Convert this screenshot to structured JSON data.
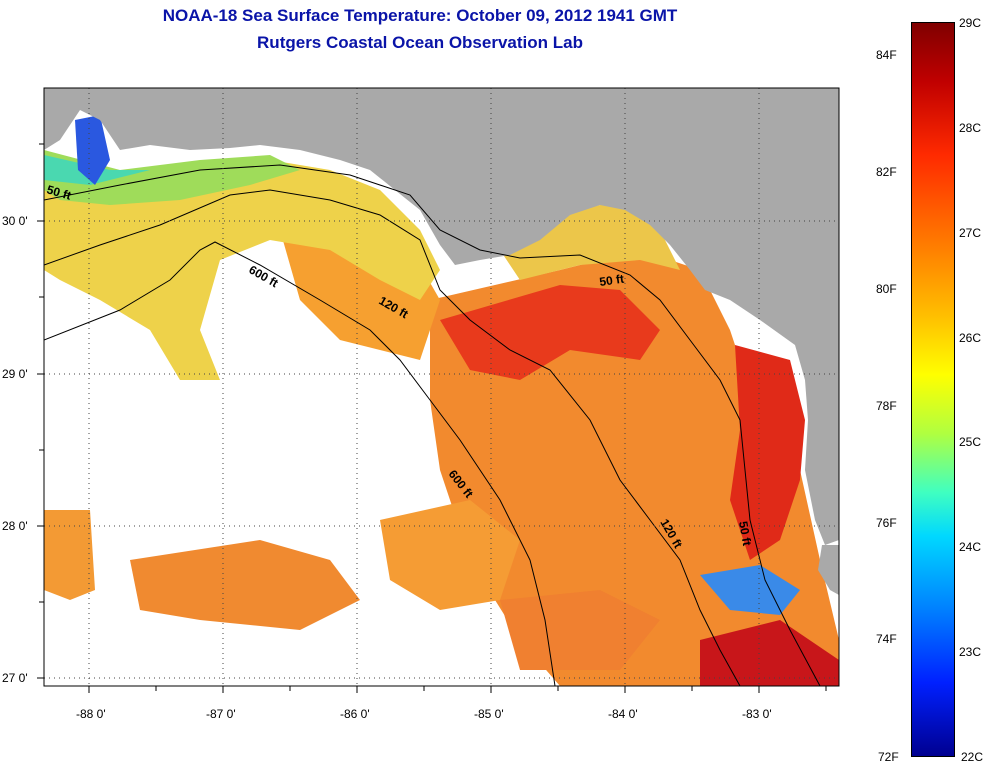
{
  "title_line1": "NOAA-18 Sea Surface Temperature:  October 09, 2012 1941 GMT",
  "title_line2": "Rutgers Coastal Ocean Observation Lab",
  "axes": {
    "lon_labels": [
      "-88 0'",
      "-87 0'",
      "-86 0'",
      "-85 0'",
      "-84 0'",
      "-83 0'"
    ],
    "lat_labels": [
      "30 0'",
      "29 0'",
      "28 0'",
      "27 0'"
    ]
  },
  "contours": {
    "c600_a": "600 ft",
    "c600_b": "600 ft",
    "c120_a": "120 ft",
    "c120_b": "120 ft",
    "c50_a": "50 ft",
    "c50_b": "50 ft",
    "c50_c": "50 ft"
  },
  "colorbar": {
    "f_labels": [
      "84F",
      "82F",
      "80F",
      "78F",
      "76F",
      "74F",
      "72F"
    ],
    "c_labels": [
      "29C",
      "28C",
      "27C",
      "26C",
      "25C",
      "24C",
      "23C",
      "22C"
    ]
  },
  "colors": {
    "title": "#0a14a8",
    "land": "#a9a9a9",
    "cloud": "#ffffff"
  }
}
